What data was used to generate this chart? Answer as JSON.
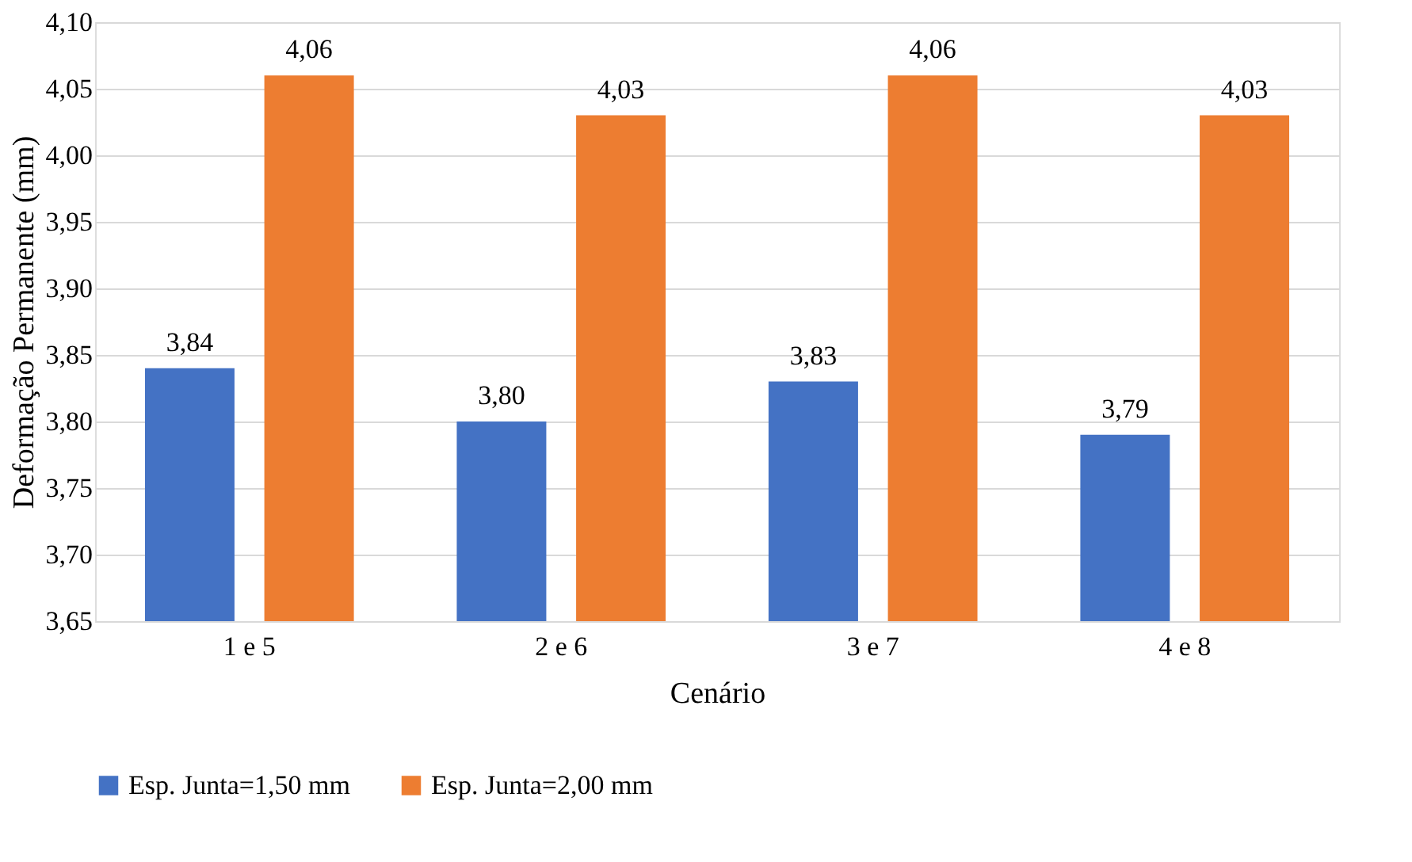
{
  "chart_data": {
    "type": "bar",
    "xlabel": "Cenário",
    "ylabel": "Deformação Permanente (mm)",
    "categories": [
      "1 e 5",
      "2 e 6",
      "3 e 7",
      "4 e 8"
    ],
    "series": [
      {
        "name": "Esp. Junta=1,50 mm",
        "color": "#4472c4",
        "values": [
          3.84,
          3.8,
          3.83,
          3.79
        ],
        "value_labels": [
          "3,84",
          "3,80",
          "3,83",
          "3,79"
        ]
      },
      {
        "name": "Esp. Junta=2,00 mm",
        "color": "#ed7d31",
        "values": [
          4.06,
          4.03,
          4.06,
          4.03
        ],
        "value_labels": [
          "4,06",
          "4,03",
          "4,06",
          "4,03"
        ]
      }
    ],
    "ylim": [
      3.65,
      4.1
    ],
    "yticks": [
      {
        "value": 3.65,
        "label": "3,65"
      },
      {
        "value": 3.7,
        "label": "3,70"
      },
      {
        "value": 3.75,
        "label": "3,75"
      },
      {
        "value": 3.8,
        "label": "3,80"
      },
      {
        "value": 3.85,
        "label": "3,85"
      },
      {
        "value": 3.9,
        "label": "3,90"
      },
      {
        "value": 3.95,
        "label": "3,95"
      },
      {
        "value": 4.0,
        "label": "4,00"
      },
      {
        "value": 4.05,
        "label": "4,05"
      },
      {
        "value": 4.1,
        "label": "4,10"
      }
    ],
    "grid": "y",
    "legend": "bottom"
  }
}
